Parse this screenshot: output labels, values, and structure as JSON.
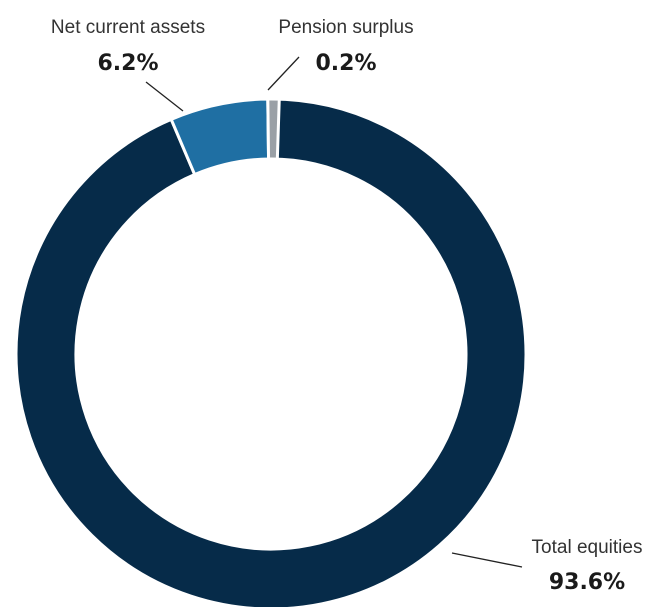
{
  "chart_data": {
    "type": "pie",
    "donut": true,
    "categories": [
      "Total equities",
      "Net current assets",
      "Pension surplus"
    ],
    "values": [
      93.6,
      6.2,
      0.2
    ],
    "value_labels": [
      "93.6%",
      "6.2%",
      "0.2%"
    ],
    "colors": [
      "#062b49",
      "#1f6fa3",
      "#9aa0a6"
    ],
    "legend": "none"
  }
}
